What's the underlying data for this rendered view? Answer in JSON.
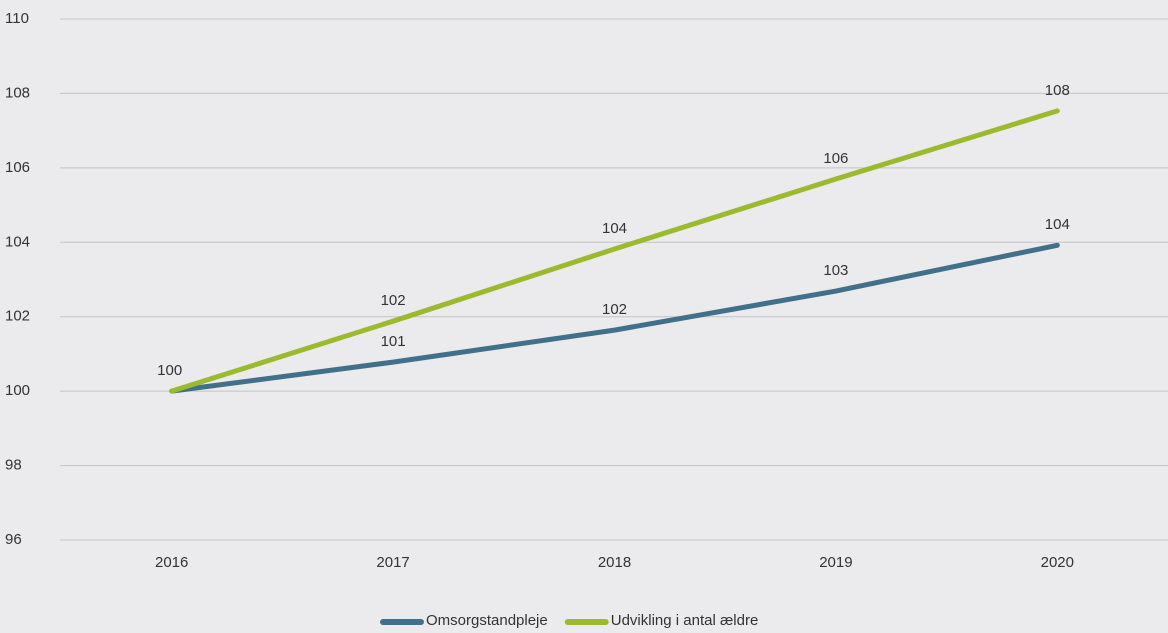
{
  "chart_data": {
    "type": "line",
    "categories": [
      "2016",
      "2017",
      "2018",
      "2019",
      "2020"
    ],
    "series": [
      {
        "name": "Omsorgstandpleje",
        "color": "#41708a",
        "values": [
          100,
          100.78,
          101.64,
          102.69,
          103.92
        ],
        "value_labels": [
          null,
          "101",
          "102",
          "103",
          "104"
        ]
      },
      {
        "name": "Udvikling i antal ældre",
        "color": "#9cba2e",
        "values": [
          100,
          101.88,
          103.82,
          105.7,
          107.53
        ],
        "value_labels": [
          "100",
          "102",
          "104",
          "106",
          "108"
        ]
      }
    ],
    "ylim": [
      96,
      110
    ],
    "yticks": [
      96,
      98,
      100,
      102,
      104,
      106,
      108,
      110
    ],
    "grid": true
  }
}
